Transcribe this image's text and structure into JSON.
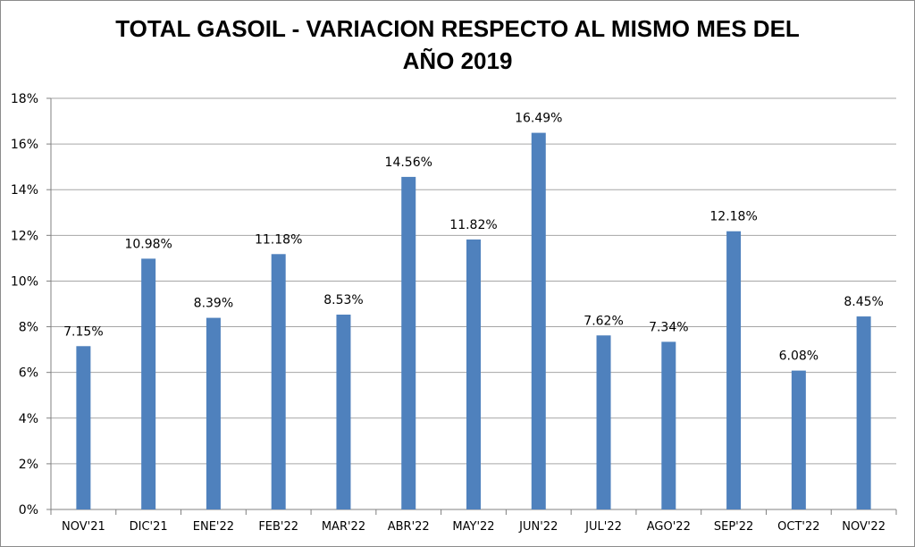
{
  "chart_data": {
    "type": "bar",
    "title_line1": "TOTAL GASOIL - VARIACION RESPECTO AL MISMO MES DEL",
    "title_line2": "AÑO 2019",
    "categories": [
      "NOV'21",
      "DIC'21",
      "ENE'22",
      "FEB'22",
      "MAR'22",
      "ABR'22",
      "MAY'22",
      "JUN'22",
      "JUL'22",
      "AGO'22",
      "SEP'22",
      "OCT'22",
      "NOV'22"
    ],
    "values": [
      7.15,
      10.98,
      8.39,
      11.18,
      8.53,
      14.56,
      11.82,
      16.49,
      7.62,
      7.34,
      12.18,
      6.08,
      8.45
    ],
    "data_labels": [
      "7.15%",
      "10.98%",
      "8.39%",
      "11.18%",
      "8.53%",
      "14.56%",
      "11.82%",
      "16.49%",
      "7.62%",
      "7.34%",
      "12.18%",
      "6.08%",
      "8.45%"
    ],
    "yticks": [
      "0%",
      "2%",
      "4%",
      "6%",
      "8%",
      "10%",
      "12%",
      "14%",
      "16%",
      "18%"
    ],
    "ylim": [
      0,
      18
    ],
    "grid": true,
    "bar_color": "#4f81bd",
    "grid_color": "#a6a6a6",
    "axis_color": "#808080"
  }
}
